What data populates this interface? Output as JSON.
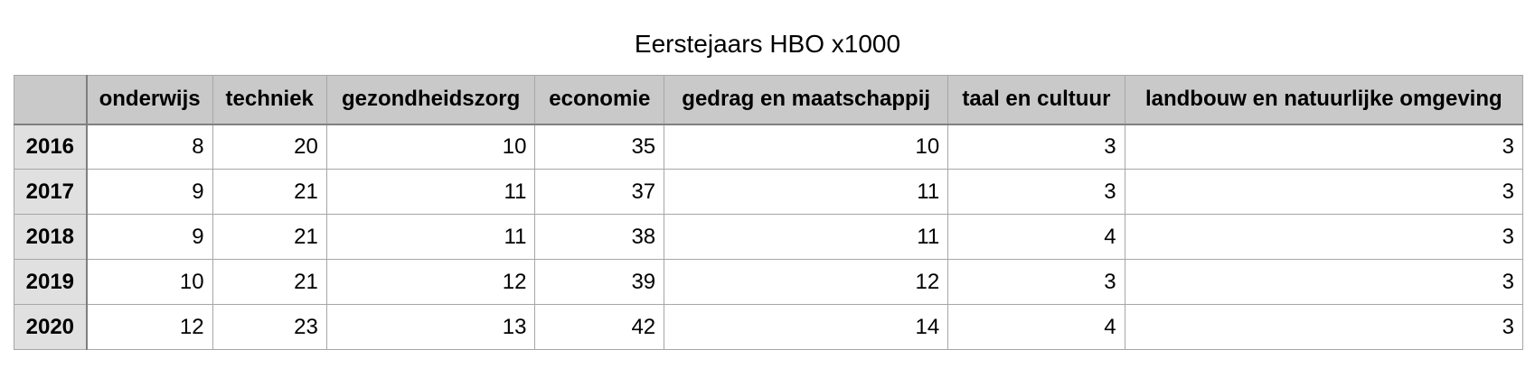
{
  "title": "Eerstejaars HBO x1000",
  "chart_data": {
    "type": "table",
    "title": "Eerstejaars HBO x1000",
    "columns": [
      "onderwijs",
      "techniek",
      "gezondheidszorg",
      "economie",
      "gedrag en maatschappij",
      "taal en cultuur",
      "landbouw en natuurlijke omgeving"
    ],
    "rows": [
      {
        "year": "2016",
        "values": [
          8,
          20,
          10,
          35,
          10,
          3,
          3
        ]
      },
      {
        "year": "2017",
        "values": [
          9,
          21,
          11,
          37,
          11,
          3,
          3
        ]
      },
      {
        "year": "2018",
        "values": [
          9,
          21,
          11,
          38,
          11,
          4,
          3
        ]
      },
      {
        "year": "2019",
        "values": [
          10,
          21,
          12,
          39,
          12,
          3,
          3
        ]
      },
      {
        "year": "2020",
        "values": [
          12,
          23,
          13,
          42,
          14,
          4,
          3
        ]
      }
    ]
  },
  "colors": {
    "header_bg": "#c8c9c8",
    "row_header_bg": "#e0e0e0",
    "grid": "#a6a6a6"
  }
}
